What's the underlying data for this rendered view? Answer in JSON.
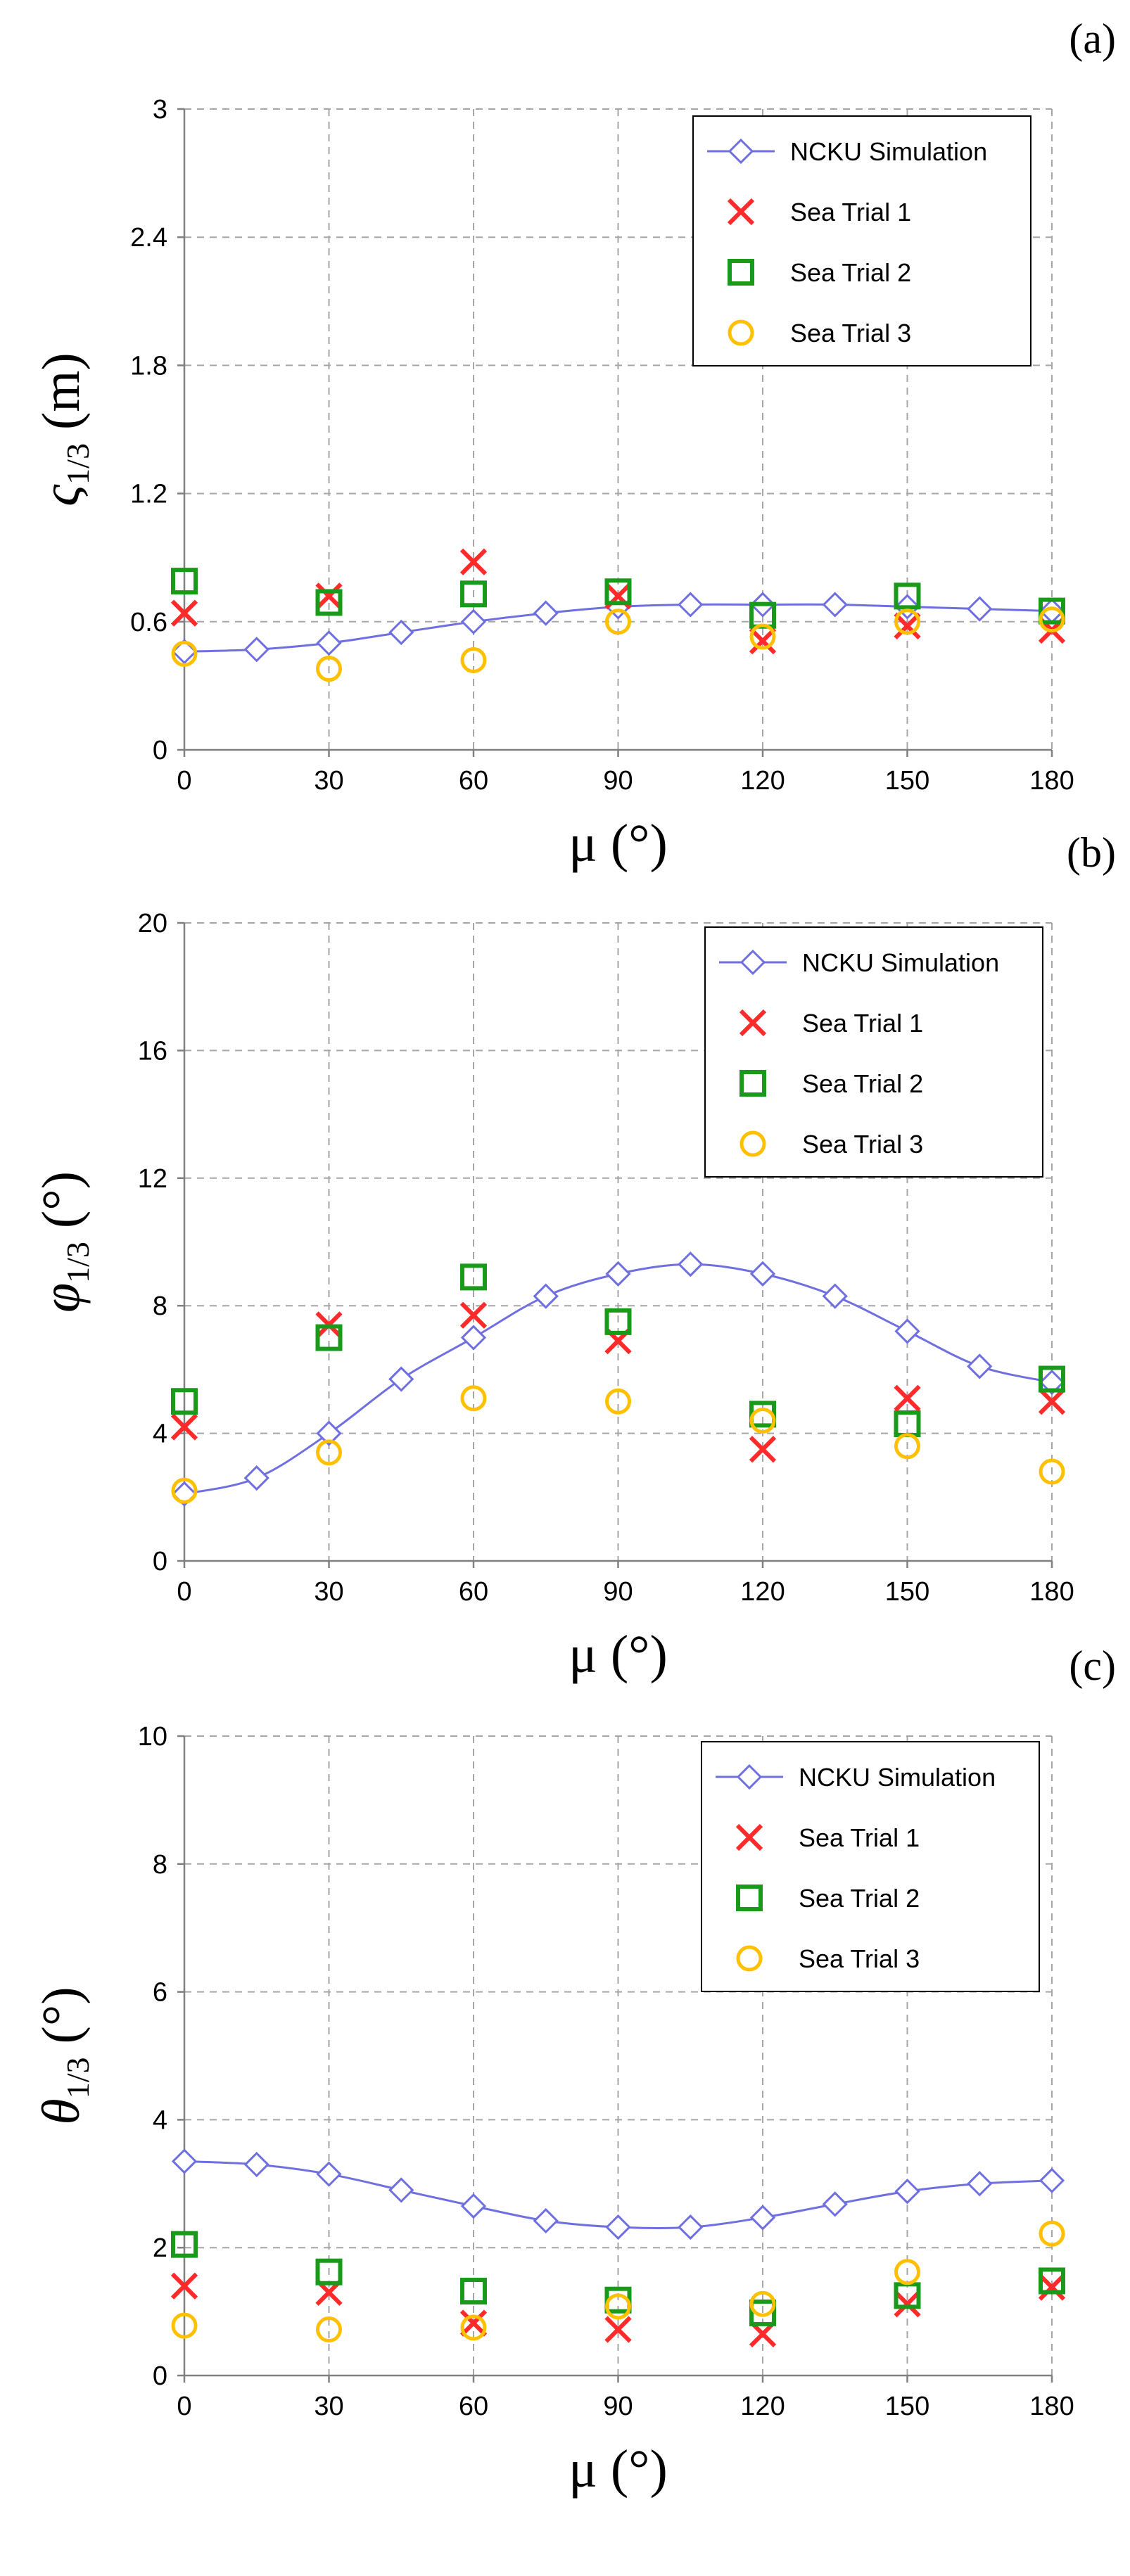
{
  "chart_data": [
    {
      "type": "line",
      "panel_label": "(a)",
      "ylabel": {
        "symbol": "ς",
        "subscript": "1/3",
        "unit": " (m)"
      },
      "xlabel": {
        "symbol": "μ",
        "unit": " (°)"
      },
      "xlim": [
        0,
        180
      ],
      "ylim": [
        0,
        3
      ],
      "xticks": [
        0,
        30,
        60,
        90,
        120,
        150,
        180
      ],
      "yticks": [
        0,
        0.6,
        1.2,
        1.8,
        2.4,
        3
      ],
      "ytick_labels": [
        "0",
        "0.6",
        "1.2",
        "1.8",
        "2.4",
        "3"
      ],
      "grid": true,
      "legend_position": "top-right",
      "series": [
        {
          "name": "NCKU Simulation",
          "marker": "diamond",
          "color": "#6f6fe0",
          "x": [
            0,
            15,
            30,
            45,
            60,
            75,
            90,
            105,
            120,
            135,
            150,
            165,
            180
          ],
          "y": [
            0.46,
            0.47,
            0.5,
            0.55,
            0.6,
            0.64,
            0.67,
            0.68,
            0.68,
            0.68,
            0.67,
            0.66,
            0.65
          ]
        },
        {
          "name": "Sea Trial 1",
          "marker": "x",
          "color": "#ff2a2a",
          "x": [
            0,
            30,
            60,
            90,
            120,
            150,
            180
          ],
          "y": [
            0.64,
            0.72,
            0.88,
            0.72,
            0.51,
            0.58,
            0.56
          ]
        },
        {
          "name": "Sea Trial 2",
          "marker": "square",
          "color": "#1a9a1a",
          "x": [
            0,
            30,
            60,
            90,
            120,
            150,
            180
          ],
          "y": [
            0.79,
            0.69,
            0.73,
            0.74,
            0.63,
            0.72,
            0.65
          ]
        },
        {
          "name": "Sea Trial 3",
          "marker": "circle",
          "color": "#ffc000",
          "x": [
            0,
            30,
            60,
            90,
            120,
            150,
            180
          ],
          "y": [
            0.45,
            0.38,
            0.42,
            0.6,
            0.53,
            0.6,
            0.61
          ]
        }
      ]
    },
    {
      "type": "line",
      "panel_label": "(b)",
      "ylabel": {
        "symbol": "φ",
        "subscript": "1/3",
        "unit": " (°)"
      },
      "xlabel": {
        "symbol": "μ",
        "unit": " (°)"
      },
      "xlim": [
        0,
        180
      ],
      "ylim": [
        0,
        20
      ],
      "xticks": [
        0,
        30,
        60,
        90,
        120,
        150,
        180
      ],
      "yticks": [
        0,
        4,
        8,
        12,
        16,
        20
      ],
      "ytick_labels": [
        "0",
        "4",
        "8",
        "12",
        "16",
        "20"
      ],
      "grid": true,
      "legend_position": "top-right",
      "series": [
        {
          "name": "NCKU Simulation",
          "marker": "diamond",
          "color": "#6f6fe0",
          "x": [
            0,
            15,
            30,
            45,
            60,
            75,
            90,
            105,
            120,
            135,
            150,
            165,
            180
          ],
          "y": [
            2.1,
            2.6,
            4.0,
            5.7,
            7.0,
            8.3,
            9.0,
            9.3,
            9.0,
            8.3,
            7.2,
            6.1,
            5.6
          ]
        },
        {
          "name": "Sea Trial 1",
          "marker": "x",
          "color": "#ff2a2a",
          "x": [
            0,
            30,
            60,
            90,
            120,
            150,
            180
          ],
          "y": [
            4.2,
            7.4,
            7.7,
            6.9,
            3.5,
            5.1,
            5.0
          ]
        },
        {
          "name": "Sea Trial 2",
          "marker": "square",
          "color": "#1a9a1a",
          "x": [
            0,
            30,
            60,
            90,
            120,
            150,
            180
          ],
          "y": [
            5.0,
            7.0,
            8.9,
            7.5,
            4.6,
            4.3,
            5.7
          ]
        },
        {
          "name": "Sea Trial 3",
          "marker": "circle",
          "color": "#ffc000",
          "x": [
            0,
            30,
            60,
            90,
            120,
            150,
            180
          ],
          "y": [
            2.2,
            3.4,
            5.1,
            5.0,
            4.4,
            3.6,
            2.8
          ]
        }
      ]
    },
    {
      "type": "line",
      "panel_label": "(c)",
      "ylabel": {
        "symbol": "θ",
        "subscript": "1/3",
        "unit": " (°)"
      },
      "xlabel": {
        "symbol": "μ",
        "unit": " (°)"
      },
      "xlim": [
        0,
        180
      ],
      "ylim": [
        0,
        10
      ],
      "xticks": [
        0,
        30,
        60,
        90,
        120,
        150,
        180
      ],
      "yticks": [
        0,
        2,
        4,
        6,
        8,
        10
      ],
      "ytick_labels": [
        "0",
        "2",
        "4",
        "6",
        "8",
        "10"
      ],
      "grid": true,
      "legend_position": "top-right",
      "series": [
        {
          "name": "NCKU Simulation",
          "marker": "diamond",
          "color": "#6f6fe0",
          "x": [
            0,
            15,
            30,
            45,
            60,
            75,
            90,
            105,
            120,
            135,
            150,
            165,
            180
          ],
          "y": [
            3.35,
            3.3,
            3.15,
            2.9,
            2.65,
            2.42,
            2.32,
            2.32,
            2.47,
            2.68,
            2.88,
            3.0,
            3.05
          ]
        },
        {
          "name": "Sea Trial 1",
          "marker": "x",
          "color": "#ff2a2a",
          "x": [
            0,
            30,
            60,
            90,
            120,
            150,
            180
          ],
          "y": [
            1.4,
            1.3,
            0.82,
            0.72,
            0.65,
            1.12,
            1.38
          ]
        },
        {
          "name": "Sea Trial 2",
          "marker": "square",
          "color": "#1a9a1a",
          "x": [
            0,
            30,
            60,
            90,
            120,
            150,
            180
          ],
          "y": [
            2.05,
            1.62,
            1.32,
            1.18,
            0.98,
            1.25,
            1.48
          ]
        },
        {
          "name": "Sea Trial 3",
          "marker": "circle",
          "color": "#ffc000",
          "x": [
            0,
            30,
            60,
            90,
            120,
            150,
            180
          ],
          "y": [
            0.78,
            0.72,
            0.75,
            1.08,
            1.12,
            1.62,
            2.22
          ]
        }
      ]
    }
  ]
}
